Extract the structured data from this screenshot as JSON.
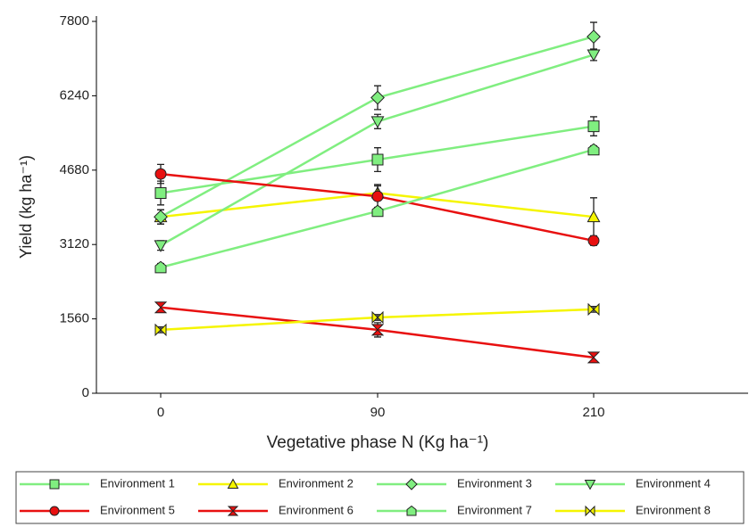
{
  "chart_data": {
    "type": "line",
    "ylabel": "Yield (kg ha⁻¹)",
    "xlabel": "Vegetative phase N (Kg ha⁻¹)",
    "categories": [
      "0",
      "90",
      "210"
    ],
    "ylim": [
      0,
      7800
    ],
    "yticks": [
      0,
      1560,
      3120,
      4680,
      6240,
      7800
    ],
    "series": [
      {
        "name": "Environment 1",
        "color": "#80ee80",
        "marker": "square",
        "values": [
          4200,
          4900,
          5600
        ],
        "errors": [
          250,
          250,
          200
        ]
      },
      {
        "name": "Environment 2",
        "color": "#f5f500",
        "marker": "triangle",
        "values": [
          3700,
          4200,
          3700
        ],
        "errors": [
          150,
          150,
          400
        ]
      },
      {
        "name": "Environment 3",
        "color": "#80ee80",
        "marker": "diamond",
        "values": [
          3700,
          6200,
          7480
        ],
        "errors": [
          150,
          250,
          300
        ]
      },
      {
        "name": "Environment 4",
        "color": "#80ee80",
        "marker": "triangle-down",
        "values": [
          3100,
          5700,
          7100
        ],
        "errors": [
          100,
          150,
          120
        ]
      },
      {
        "name": "Environment 5",
        "color": "#e81010",
        "marker": "circle",
        "values": [
          4600,
          4130,
          3200
        ],
        "errors": [
          200,
          250,
          100
        ]
      },
      {
        "name": "Environment 6",
        "color": "#e81010",
        "marker": "hourglass",
        "values": [
          1800,
          1330,
          750
        ],
        "errors": [
          100,
          150,
          80
        ]
      },
      {
        "name": "Environment 7",
        "color": "#80ee80",
        "marker": "house",
        "values": [
          2640,
          3820,
          5110
        ],
        "errors": [
          80,
          80,
          80
        ]
      },
      {
        "name": "Environment 8",
        "color": "#f5f500",
        "marker": "bowtie",
        "values": [
          1330,
          1590,
          1760
        ],
        "errors": [
          60,
          60,
          60
        ]
      }
    ]
  }
}
